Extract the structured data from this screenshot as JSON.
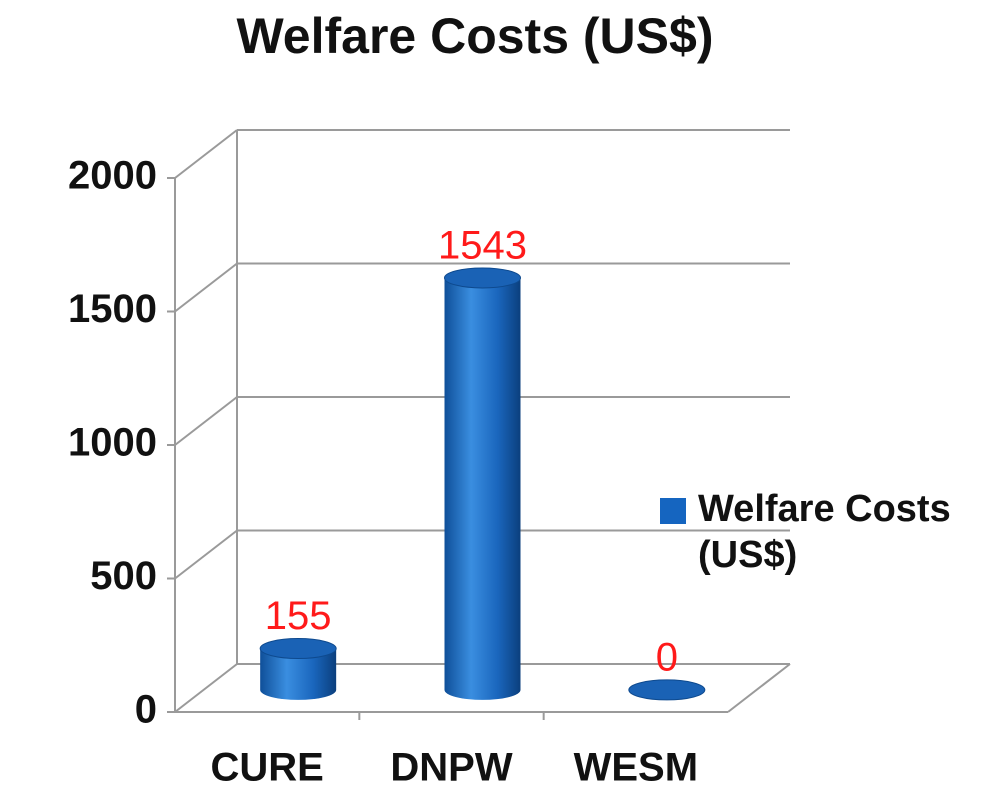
{
  "chart_data": {
    "type": "bar3d",
    "title": "Welfare Costs (US$)",
    "categories": [
      "CURE",
      "DNPW",
      "WESM"
    ],
    "series": [
      {
        "name": "Welfare Costs (US$)",
        "color": "#1565c0",
        "values": [
          155,
          1543,
          0
        ]
      }
    ],
    "ylim": [
      0,
      2000
    ],
    "yticks": [
      0,
      500,
      1000,
      1500,
      2000
    ],
    "grid": true,
    "legend": "right"
  }
}
